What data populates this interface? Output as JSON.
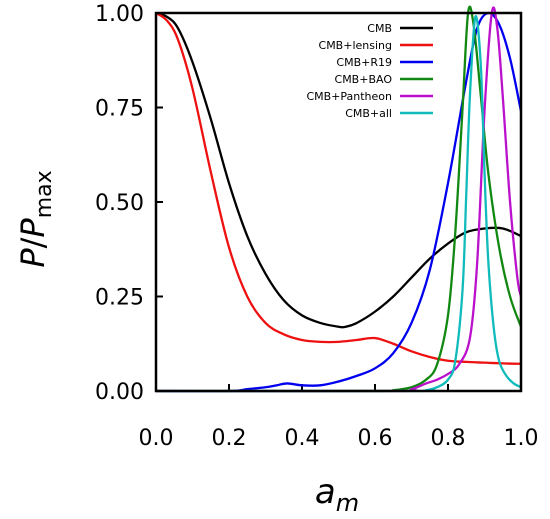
{
  "chart_data": {
    "type": "line",
    "xlabel": "a",
    "xlabel_sub": "m",
    "ylabel_main": "P",
    "ylabel_slash": "/",
    "ylabel_den": "P",
    "ylabel_sub": "max",
    "xlim": [
      0.0,
      1.0
    ],
    "ylim": [
      0.0,
      1.0
    ],
    "xticks": [
      "0.0",
      "0.2",
      "0.4",
      "0.6",
      "0.8",
      "1.0"
    ],
    "yticks": [
      "0.00",
      "0.25",
      "0.50",
      "0.75",
      "1.00"
    ],
    "legend_placement": "top-right",
    "series": [
      {
        "name": "CMB",
        "color": "#000000",
        "x": [
          0.0,
          0.03,
          0.06,
          0.1,
          0.15,
          0.2,
          0.25,
          0.3,
          0.35,
          0.4,
          0.45,
          0.5,
          0.52,
          0.55,
          0.6,
          0.65,
          0.7,
          0.75,
          0.8,
          0.85,
          0.9,
          0.95,
          1.0
        ],
        "y": [
          1.0,
          0.99,
          0.96,
          0.87,
          0.72,
          0.55,
          0.41,
          0.31,
          0.24,
          0.2,
          0.18,
          0.17,
          0.17,
          0.18,
          0.21,
          0.25,
          0.3,
          0.35,
          0.39,
          0.42,
          0.43,
          0.43,
          0.41
        ]
      },
      {
        "name": "CMB+lensing",
        "color": "#ee1111",
        "x": [
          0.0,
          0.03,
          0.06,
          0.1,
          0.15,
          0.2,
          0.25,
          0.3,
          0.35,
          0.4,
          0.45,
          0.5,
          0.55,
          0.6,
          0.65,
          0.7,
          0.75,
          0.8,
          0.85,
          0.9,
          0.95,
          1.0
        ],
        "y": [
          1.0,
          0.98,
          0.93,
          0.8,
          0.58,
          0.38,
          0.25,
          0.18,
          0.15,
          0.135,
          0.13,
          0.13,
          0.135,
          0.14,
          0.125,
          0.105,
          0.09,
          0.08,
          0.077,
          0.075,
          0.073,
          0.072
        ]
      },
      {
        "name": "CMB+R19",
        "color": "#0000ee",
        "x": [
          0.0,
          0.2,
          0.25,
          0.3,
          0.33,
          0.36,
          0.4,
          0.45,
          0.5,
          0.55,
          0.6,
          0.65,
          0.7,
          0.75,
          0.8,
          0.85,
          0.88,
          0.91,
          0.94,
          0.97,
          1.0
        ],
        "y": [
          0.0,
          0.0,
          0.005,
          0.01,
          0.015,
          0.02,
          0.015,
          0.015,
          0.025,
          0.04,
          0.06,
          0.1,
          0.18,
          0.32,
          0.55,
          0.82,
          0.96,
          1.0,
          0.97,
          0.88,
          0.74
        ]
      },
      {
        "name": "CMB+BAO",
        "color": "#118811",
        "x": [
          0.0,
          0.6,
          0.65,
          0.7,
          0.74,
          0.77,
          0.8,
          0.82,
          0.84,
          0.855,
          0.87,
          0.89,
          0.91,
          0.94,
          0.97,
          1.0
        ],
        "y": [
          0.0,
          0.0,
          0.002,
          0.01,
          0.03,
          0.07,
          0.2,
          0.42,
          0.75,
          1.0,
          0.97,
          0.78,
          0.58,
          0.38,
          0.25,
          0.17
        ]
      },
      {
        "name": "CMB+Pantheon",
        "color": "#bb11cc",
        "x": [
          0.0,
          0.65,
          0.7,
          0.74,
          0.77,
          0.8,
          0.83,
          0.86,
          0.88,
          0.9,
          0.92,
          0.935,
          0.95,
          0.97,
          0.99,
          1.0
        ],
        "y": [
          0.0,
          0.0,
          0.005,
          0.02,
          0.03,
          0.045,
          0.07,
          0.14,
          0.34,
          0.74,
          1.0,
          0.96,
          0.78,
          0.5,
          0.3,
          0.25
        ]
      },
      {
        "name": "CMB+all",
        "color": "#11bbbb",
        "x": [
          0.0,
          0.7,
          0.74,
          0.77,
          0.8,
          0.82,
          0.84,
          0.85,
          0.86,
          0.875,
          0.89,
          0.9,
          0.91,
          0.925,
          0.94,
          0.96,
          0.98,
          1.0
        ],
        "y": [
          0.0,
          0.0,
          0.002,
          0.01,
          0.03,
          0.08,
          0.27,
          0.52,
          0.78,
          0.99,
          0.86,
          0.58,
          0.35,
          0.17,
          0.08,
          0.04,
          0.02,
          0.01
        ]
      }
    ]
  }
}
